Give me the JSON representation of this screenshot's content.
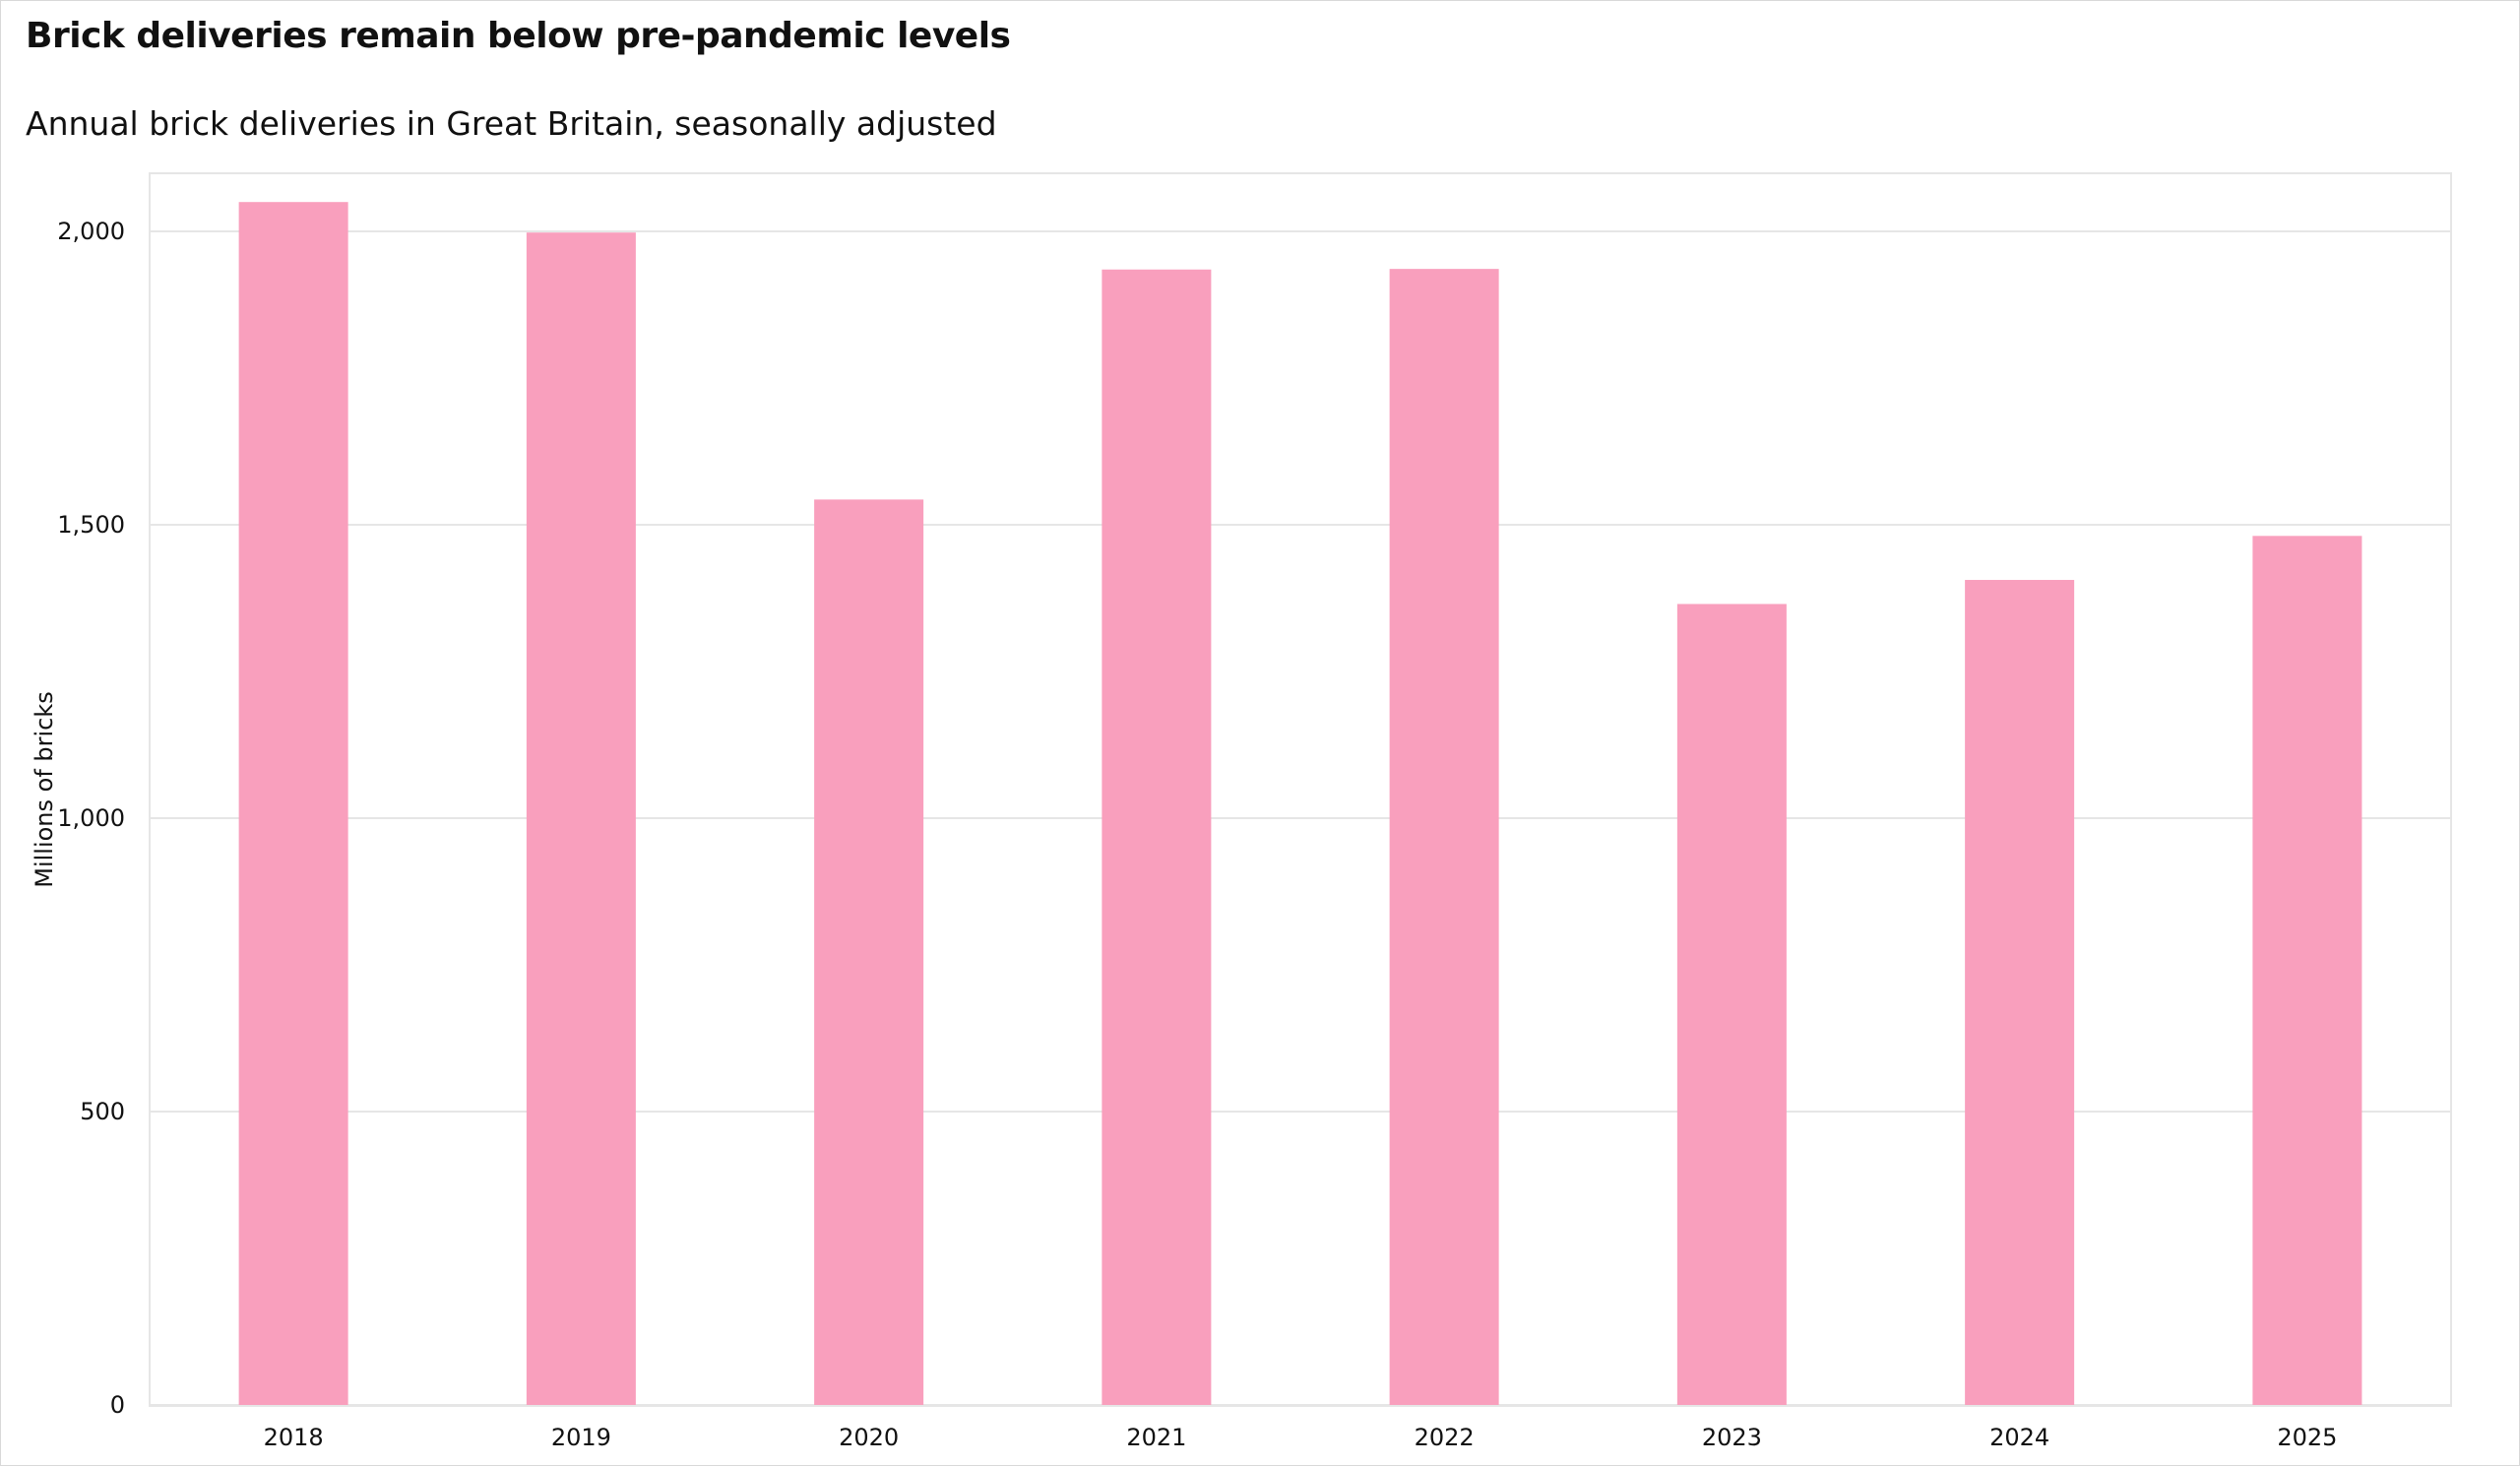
{
  "title": "Brick deliveries remain below pre-pandemic levels",
  "subtitle": "Annual brick deliveries in Great Britain, seasonally adjusted",
  "colors": {
    "bar": "#f99fbd",
    "grid": "#e6e6e6",
    "frame": "#d9d9d9"
  },
  "chart_data": {
    "type": "bar",
    "title": "Brick deliveries remain below pre-pandemic levels",
    "subtitle": "Annual brick deliveries in Great Britain, seasonally adjusted",
    "xlabel": "",
    "ylabel": "Millions of bricks",
    "categories": [
      "2018",
      "2019",
      "2020",
      "2021",
      "2022",
      "2023",
      "2024",
      "2025"
    ],
    "values": [
      2050,
      1998,
      1543,
      1935,
      1936,
      1365,
      1406,
      1481
    ],
    "ylim": [
      0,
      2100
    ],
    "yticks": [
      0,
      500,
      1000,
      1500,
      2000
    ],
    "ytick_labels": [
      "0",
      "500",
      "1,000",
      "1,500",
      "2,000"
    ],
    "grid": true,
    "legend": "none"
  }
}
